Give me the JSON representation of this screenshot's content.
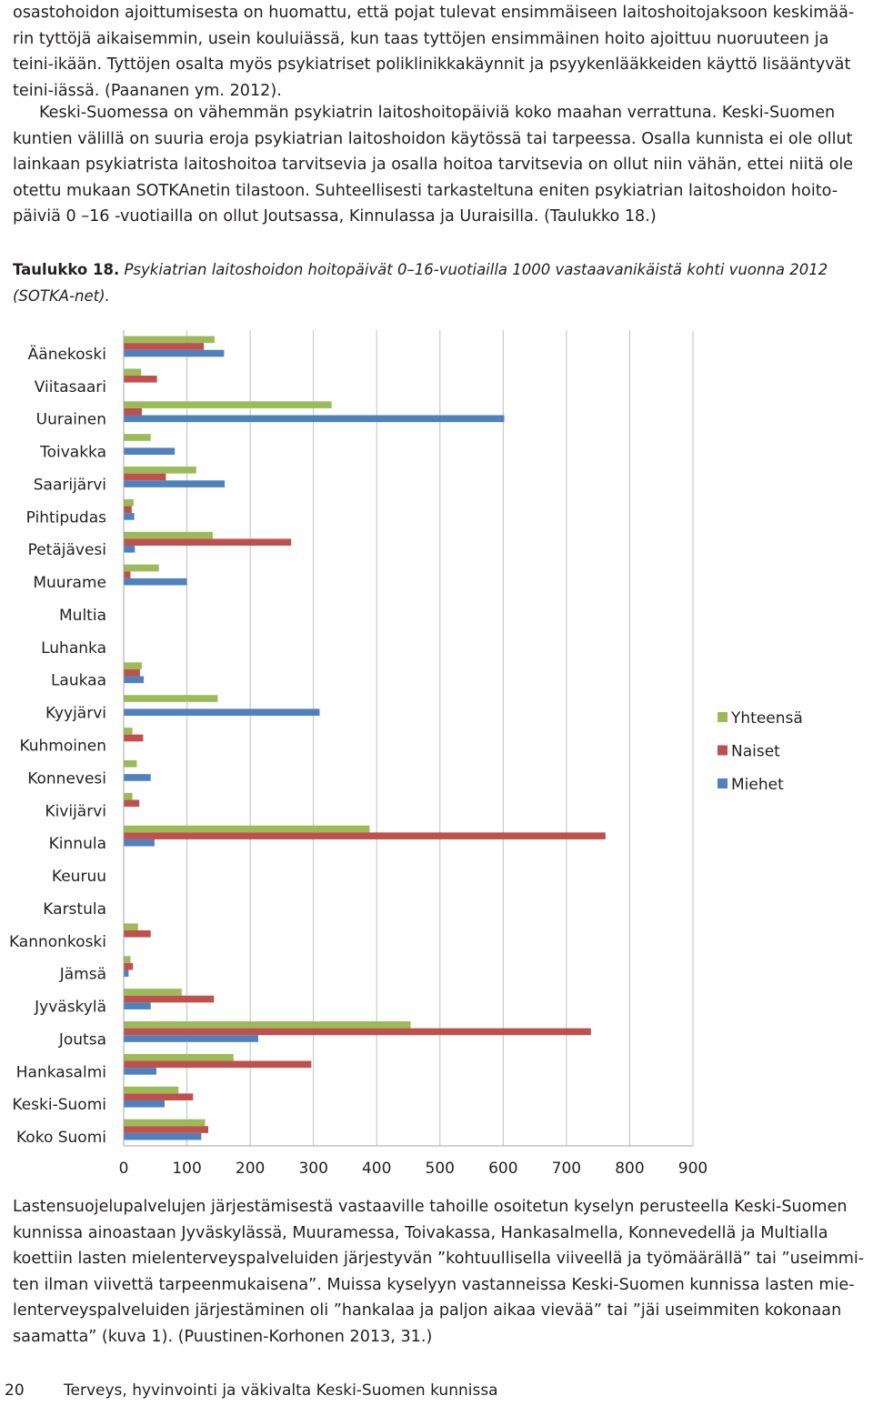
{
  "intro_paragraph": {
    "lines": [
      "osastohoidon ajoittumisesta on huomattu, että pojat tulevat ensimmäiseen laitoshoitojaksoon keskimää-",
      "rin tyttöjä aikaisemmin, usein kouluiässä, kun taas tyttöjen ensimmäinen hoito ajoittuu nuoruuteen ja",
      "teini-ikään. Tyttöjen osalta myös psykiatriset poliklinikkakäynnit ja psyykenlääkkeiden käyttö lisääntyvät",
      "teini-iässä. (Paananen ym. 2012)."
    ]
  },
  "second_paragraph": {
    "lines": [
      "Keski-Suomessa on vähemmän psykiatrin laitoshoitopäiviä koko maahan verrattuna. Keski-Suomen",
      "kuntien välillä on suuria eroja psykiatrian laitoshoidon käytössä tai tarpeessa. Osalla kunnista ei ole ollut",
      "lainkaan psykiatrista laitoshoitoa tarvitsevia ja osalla hoitoa tarvitsevia on ollut niin vähän, ettei niitä ole",
      "otettu mukaan SOTKAnetin tilastoon. Suhteellisesti tarkasteltuna eniten psykiatrian laitoshoidon hoito-",
      "päiviä 0 –16 -vuotiailla on ollut Joutsassa, Kinnulassa ja Uuraisilla. (Taulukko 18.)"
    ]
  },
  "caption": {
    "label": "Taulukko 18.",
    "text": " Psykiatrian laitoshoidon hoitopäivät 0–16-vuotiailla 1000 vastaavanikäistä kohti vuonna 2012 (SOTKA-net)."
  },
  "chart_data": {
    "type": "bar",
    "orientation": "horizontal",
    "categories": [
      "Äänekoski",
      "Viitasaari",
      "Uurainen",
      "Toivakka",
      "Saarijärvi",
      "Pihtipudas",
      "Petäjävesi",
      "Muurame",
      "Multia",
      "Luhanka",
      "Laukaa",
      "Kyyjärvi",
      "Kuhmoinen",
      "Konnevesi",
      "Kivijärvi",
      "Kinnula",
      "Keuruu",
      "Karstula",
      "Kannonkoski",
      "Jämsä",
      "Jyväskylä",
      "Joutsa",
      "Hankasalmi",
      "Keski-Suomi",
      "Koko Suomi"
    ],
    "series": [
      {
        "name": "Yhteensä",
        "color": "#9bbb59",
        "values": [
          143,
          27,
          328,
          42,
          114,
          15,
          140,
          55,
          0,
          0,
          28,
          148,
          13,
          20,
          13,
          388,
          0,
          0,
          22,
          10,
          91,
          453,
          173,
          86,
          128
        ]
      },
      {
        "name": "Naiset",
        "color": "#c0504d",
        "values": [
          126,
          52,
          28,
          0,
          66,
          12,
          264,
          10,
          0,
          0,
          25,
          0,
          30,
          0,
          24,
          761,
          0,
          0,
          42,
          14,
          142,
          738,
          296,
          109,
          133
        ]
      },
      {
        "name": "Miehet",
        "color": "#4f81bd",
        "values": [
          158,
          0,
          601,
          80,
          159,
          16,
          17,
          99,
          0,
          0,
          31,
          309,
          0,
          42,
          0,
          48,
          0,
          0,
          0,
          7,
          42,
          212,
          51,
          64,
          122
        ]
      }
    ],
    "xlim": [
      0,
      900
    ],
    "xticks": [
      0,
      100,
      200,
      300,
      400,
      500,
      600,
      700,
      800,
      900
    ],
    "grid": "vertical",
    "legend_position": "right"
  },
  "closing_paragraph": {
    "lines": [
      "Lastensuojelupalvelujen järjestämisestä vastaaville tahoille osoitetun kyselyn perusteella Keski-Suomen",
      "kunnissa ainoastaan Jyväskylässä, Muuramessa, Toivakassa, Hankasalmella, Konnevedellä ja Multialla",
      "koettiin lasten mielenterveyspalveluiden järjestyvän ”kohtuullisella viiveellä ja työmäärällä” tai ”useimmi-",
      "ten ilman viivettä tarpeenmukaisena”. Muissa kyselyyn vastanneissa Keski-Suomen kunnissa lasten mie-",
      "lenterveyspalveluiden järjestäminen oli ”hankalaa ja paljon aikaa vievää” tai ”jäi useimmiten kokonaan",
      "saamatta” (kuva 1). (Puustinen-Korhonen 2013, 31.)"
    ]
  },
  "footer": {
    "page_number": "20",
    "title": "Terveys, hyvinvointi ja väkivalta Keski-Suomen kunnissa"
  }
}
